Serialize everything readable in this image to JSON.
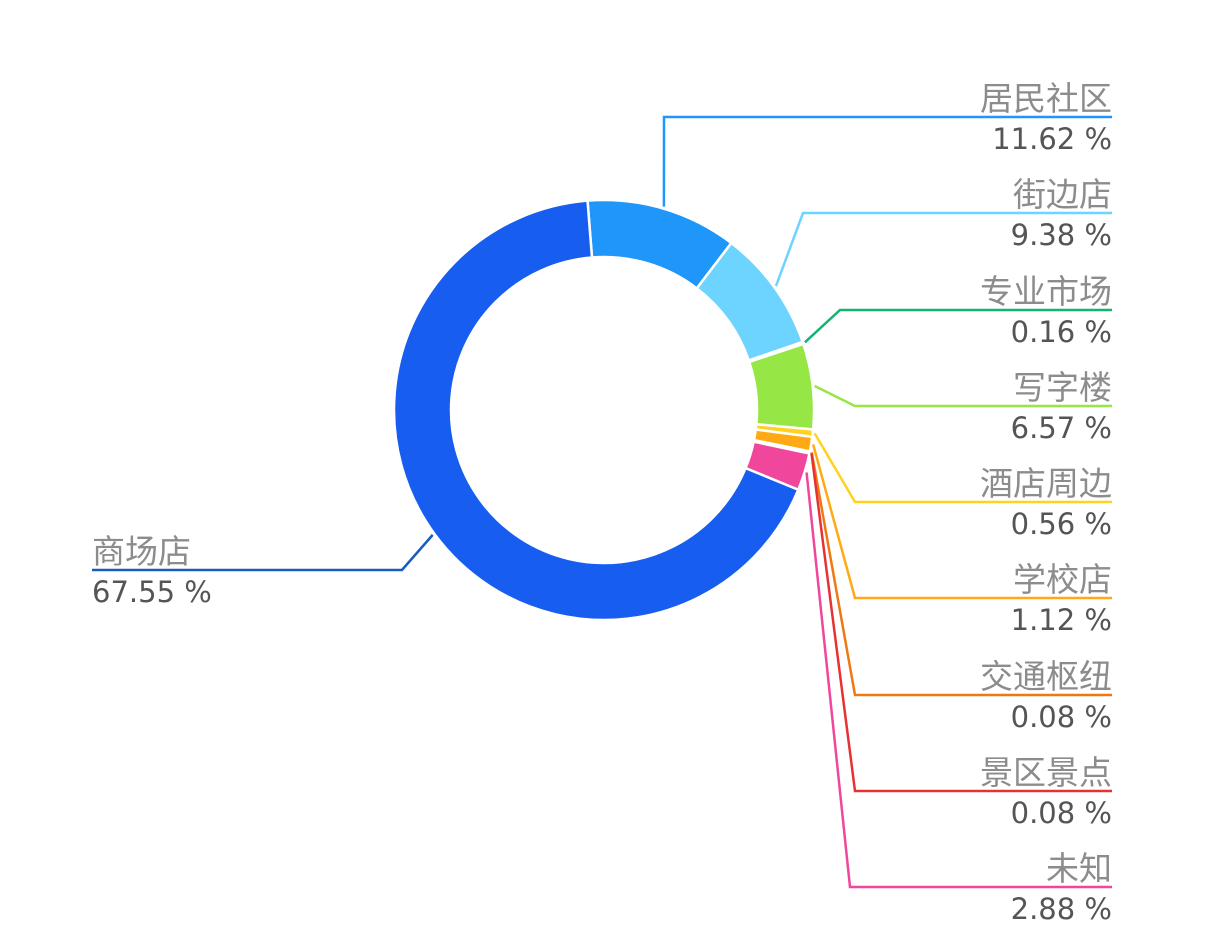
{
  "chart_data": {
    "type": "pie",
    "variant": "donut",
    "title": "",
    "slices": [
      {
        "name": "居民社区",
        "label": "11.62 %",
        "value": 11.62,
        "color": "#1e96fa"
      },
      {
        "name": "街边店",
        "label": "9.38 %",
        "value": 9.38,
        "color": "#6dd3ff"
      },
      {
        "name": "专业市场",
        "label": "0.16 %",
        "value": 0.16,
        "color": "#14b46e"
      },
      {
        "name": "写字楼",
        "label": "6.57 %",
        "value": 6.57,
        "color": "#96e646"
      },
      {
        "name": "酒店周边",
        "label": "0.56 %",
        "value": 0.56,
        "color": "#ffd21e"
      },
      {
        "name": "学校店",
        "label": "1.12 %",
        "value": 1.12,
        "color": "#ffaa14"
      },
      {
        "name": "交通枢纽",
        "label": "0.08 %",
        "value": 0.08,
        "color": "#f07814"
      },
      {
        "name": "景区景点",
        "label": "0.08 %",
        "value": 0.08,
        "color": "#e63232"
      },
      {
        "name": "未知",
        "label": "2.88 %",
        "value": 2.88,
        "color": "#f0469b"
      },
      {
        "name": "商场店",
        "label": "67.55 %",
        "value": 67.55,
        "color": "#165df0"
      }
    ],
    "label_placement": "leader lines, right column and left",
    "legend": "none"
  }
}
